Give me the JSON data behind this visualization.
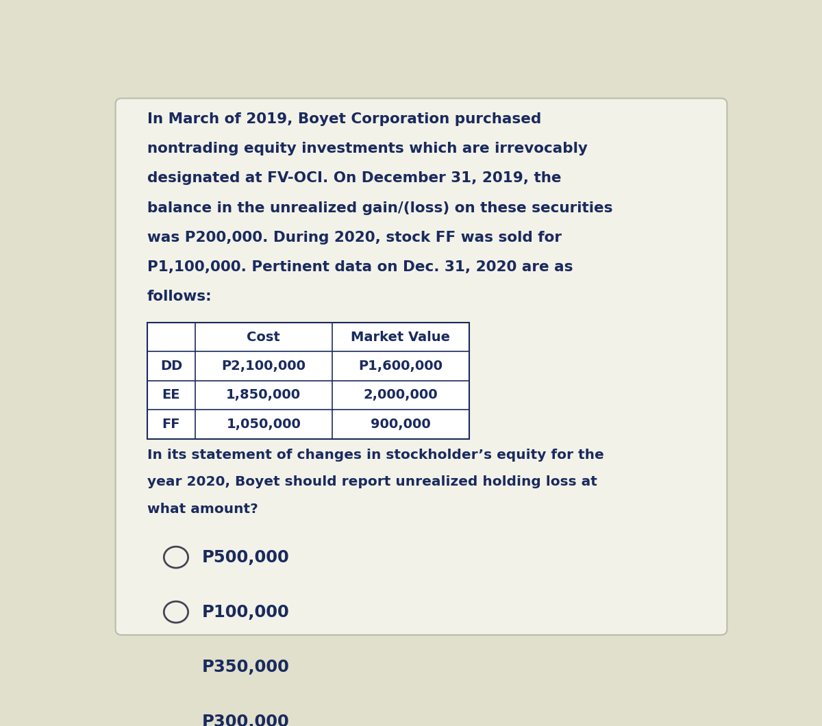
{
  "bg_color": "#e0e0cc",
  "text_color": "#1a2a5e",
  "paragraph_lines": [
    "In March of 2019, Boyet Corporation purchased",
    "nontrading equity investments which are irrevocably",
    "designated at FV-OCI. On December 31, 2019, the",
    "balance in the unrealized gain/(loss) on these securities",
    "was P200,000. During 2020, stock FF was sold for",
    "P1,100,000. Pertinent data on Dec. 31, 2020 are as",
    "follows:"
  ],
  "table_headers": [
    "",
    "Cost",
    "Market Value"
  ],
  "table_rows": [
    [
      "DD",
      "P2,100,000",
      "P1,600,000"
    ],
    [
      "EE",
      "1,850,000",
      "2,000,000"
    ],
    [
      "FF",
      "1,050,000",
      "900,000"
    ]
  ],
  "question_lines": [
    "In its statement of changes in stockholder’s equity for the",
    "year 2020, Boyet should report unrealized holding loss at",
    "what amount?"
  ],
  "choices": [
    "P500,000",
    "P100,000",
    "P350,000",
    "P300,000"
  ],
  "card_bg": "#f2f2e8",
  "card_edge_color": "#bbbbaa",
  "font_size_paragraph": 15.5,
  "font_size_table": 14.0,
  "font_size_question": 14.5,
  "font_size_choices": 17.5
}
